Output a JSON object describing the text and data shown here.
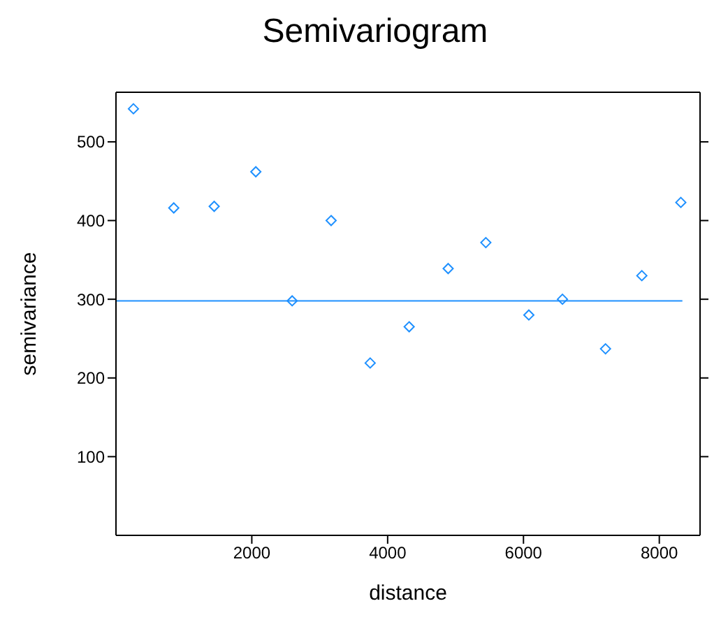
{
  "chart_data": {
    "type": "scatter",
    "title": "Semivariogram",
    "xlabel": "distance",
    "ylabel": "semivariance",
    "xlim": [
      0,
      8600
    ],
    "xticks": [
      2000,
      4000,
      6000,
      8000
    ],
    "ylim": [
      0,
      563
    ],
    "yticks": [
      100,
      200,
      300,
      400,
      500
    ],
    "marker": "diamond",
    "grid": false,
    "legend": false,
    "series": [
      {
        "color": "#1e90ff",
        "x": [
          257,
          851,
          1446,
          2059,
          2594,
          3168,
          3743,
          4317,
          4891,
          5446,
          6079,
          6574,
          7208,
          7743,
          8317
        ],
        "values": [
          542,
          416,
          418,
          462,
          298,
          400,
          219,
          265,
          339,
          372,
          280,
          300,
          237,
          330,
          423
        ]
      },
      {
        "type": "line",
        "marker": "none",
        "color": "#1e90ff",
        "x": [
          0,
          8340
        ],
        "values": [
          298,
          298
        ]
      }
    ]
  }
}
